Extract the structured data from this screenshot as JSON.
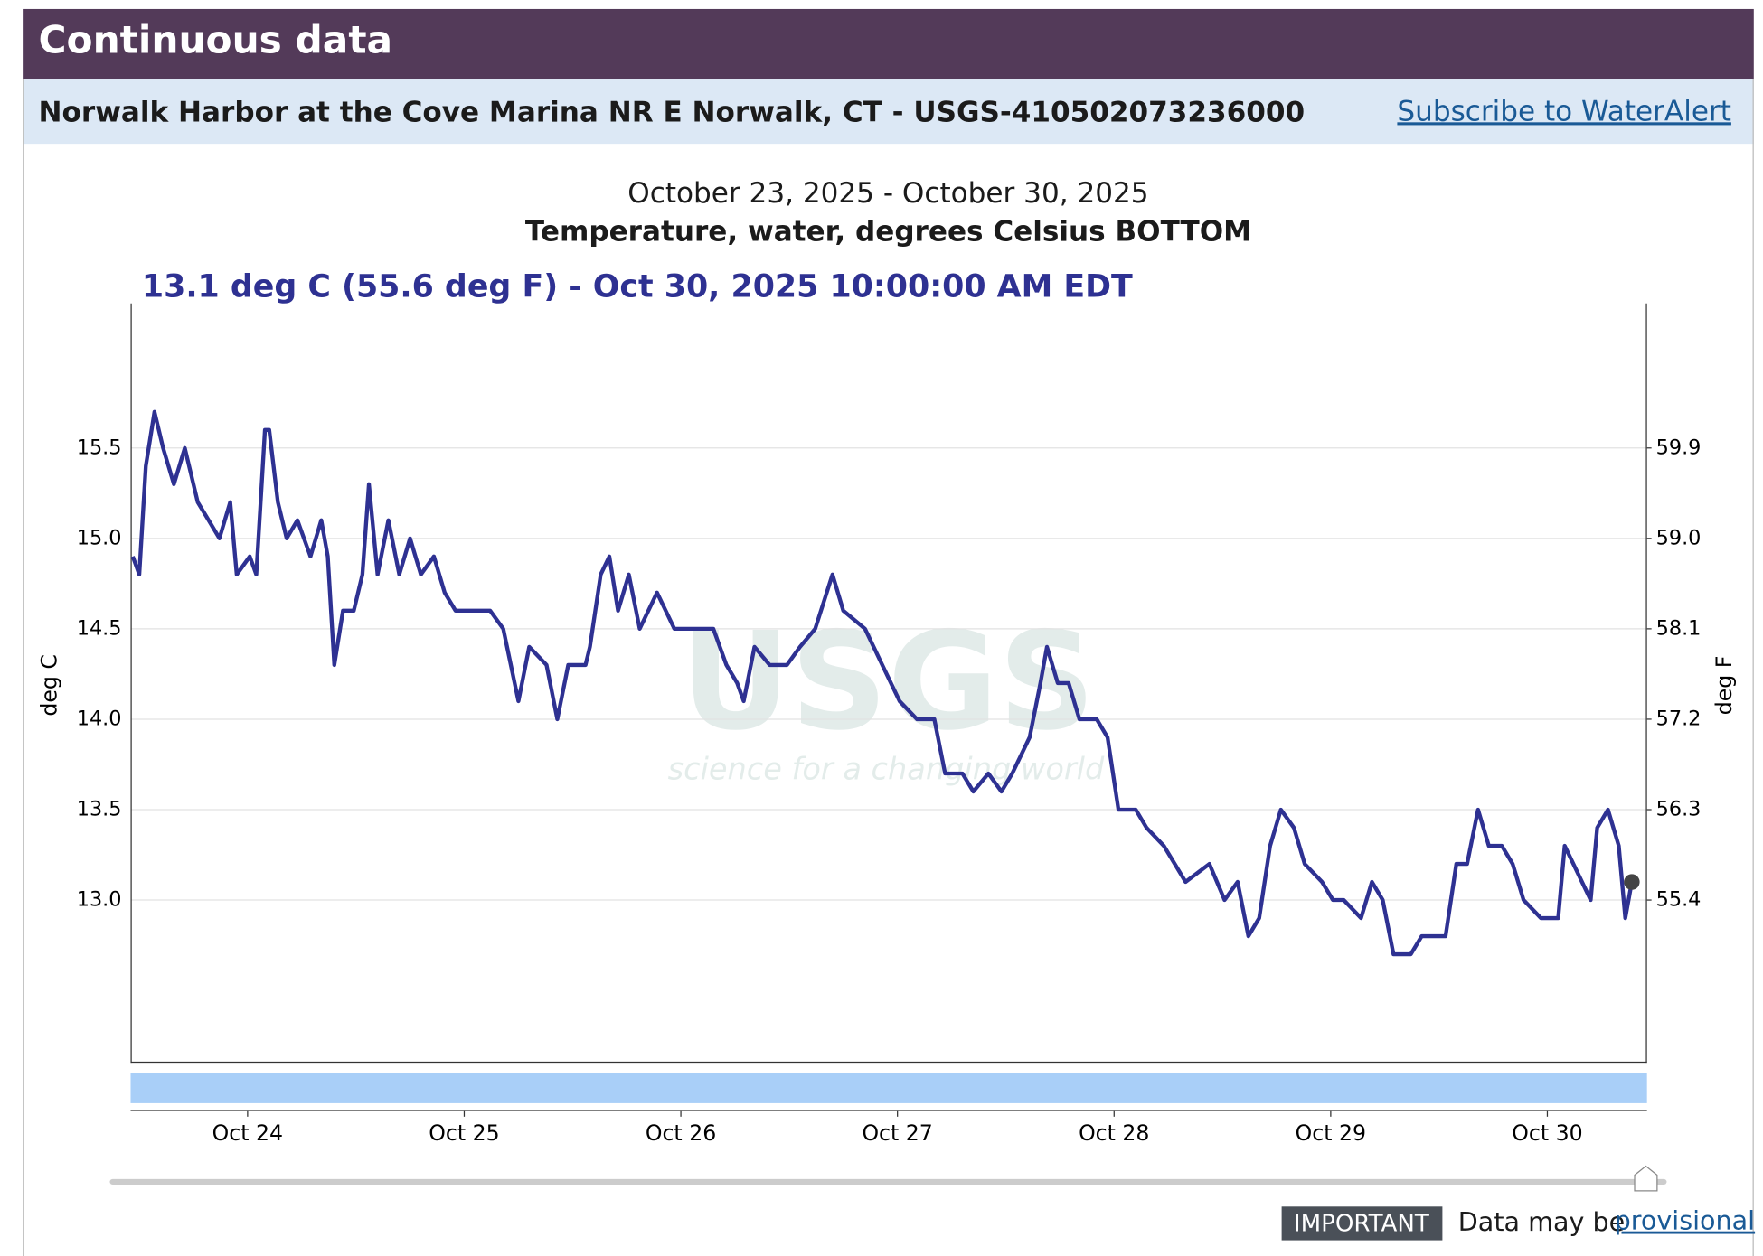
{
  "header": {
    "title": "Continuous data"
  },
  "site": {
    "name": "Norwalk Harbor at the Cove Marina NR E Norwalk, CT - USGS-410502073236000",
    "link": "Subscribe to WaterAlert"
  },
  "watermark": {
    "logo": "USGS",
    "tagline": "science for a changing world"
  },
  "chart_data": {
    "type": "line",
    "title": "October 23, 2025 - October 30, 2025",
    "subtitle": "Temperature, water, degrees Celsius BOTTOM",
    "annotation": "13.1 deg C (55.6 deg F) - Oct 30, 2025 10:00:00 AM EDT",
    "y_label": "deg C",
    "y2_label": "deg F",
    "color": "#2e3192",
    "grid": true,
    "x": [
      23.47,
      23.5,
      23.53,
      23.57,
      23.61,
      23.66,
      23.71,
      23.77,
      23.82,
      23.87,
      23.92,
      23.95,
      24.01,
      24.04,
      24.08,
      24.1,
      24.14,
      24.18,
      24.23,
      24.29,
      24.34,
      24.37,
      24.4,
      24.44,
      24.49,
      24.53,
      24.56,
      24.6,
      24.65,
      24.7,
      24.75,
      24.8,
      24.86,
      24.91,
      24.96,
      25.04,
      25.12,
      25.18,
      25.25,
      25.3,
      25.38,
      25.43,
      25.48,
      25.56,
      25.58,
      25.63,
      25.67,
      25.71,
      25.76,
      25.81,
      25.89,
      25.97,
      26.05,
      26.15,
      26.21,
      26.26,
      26.29,
      26.34,
      26.41,
      26.49,
      26.55,
      26.62,
      26.7,
      26.75,
      26.85,
      26.93,
      27.01,
      27.09,
      27.17,
      27.22,
      27.3,
      27.35,
      27.42,
      27.48,
      27.53,
      27.61,
      27.66,
      27.69,
      27.74,
      27.79,
      27.84,
      27.92,
      27.97,
      28.02,
      28.1,
      28.15,
      28.23,
      28.28,
      28.33,
      28.44,
      28.51,
      28.57,
      28.62,
      28.67,
      28.72,
      28.77,
      28.83,
      28.88,
      28.96,
      29.01,
      29.06,
      29.14,
      29.19,
      29.24,
      29.29,
      29.37,
      29.42,
      29.53,
      29.58,
      29.63,
      29.68,
      29.73,
      29.79,
      29.84,
      29.89,
      29.97,
      30.05,
      30.08,
      30.12,
      30.2,
      30.23,
      30.28,
      30.33,
      30.36,
      30.39
    ],
    "values": [
      14.9,
      14.8,
      15.4,
      15.7,
      15.5,
      15.3,
      15.5,
      15.2,
      15.1,
      15.0,
      15.2,
      14.8,
      14.9,
      14.8,
      15.6,
      15.6,
      15.2,
      15.0,
      15.1,
      14.9,
      15.1,
      14.9,
      14.3,
      14.6,
      14.6,
      14.8,
      15.3,
      14.8,
      15.1,
      14.8,
      15.0,
      14.8,
      14.9,
      14.7,
      14.6,
      14.6,
      14.6,
      14.5,
      14.1,
      14.4,
      14.3,
      14.0,
      14.3,
      14.3,
      14.4,
      14.8,
      14.9,
      14.6,
      14.8,
      14.5,
      14.7,
      14.5,
      14.5,
      14.5,
      14.3,
      14.2,
      14.1,
      14.4,
      14.3,
      14.3,
      14.4,
      14.5,
      14.8,
      14.6,
      14.5,
      14.3,
      14.1,
      14.0,
      14.0,
      13.7,
      13.7,
      13.6,
      13.7,
      13.6,
      13.7,
      13.9,
      14.2,
      14.4,
      14.2,
      14.2,
      14.0,
      14.0,
      13.9,
      13.5,
      13.5,
      13.4,
      13.3,
      13.2,
      13.1,
      13.2,
      13.0,
      13.1,
      12.8,
      12.9,
      13.3,
      13.5,
      13.4,
      13.2,
      13.1,
      13.0,
      13.0,
      12.9,
      13.1,
      13.0,
      12.7,
      12.7,
      12.8,
      12.8,
      13.2,
      13.2,
      13.5,
      13.3,
      13.3,
      13.2,
      13.0,
      12.9,
      12.9,
      13.3,
      13.2,
      13.0,
      13.4,
      13.5,
      13.3,
      12.9,
      13.1
    ],
    "xlim": [
      23.46,
      30.46
    ],
    "xticks": [
      {
        "value": 24,
        "label": "Oct 24"
      },
      {
        "value": 25,
        "label": "Oct 25"
      },
      {
        "value": 26,
        "label": "Oct 26"
      },
      {
        "value": 27,
        "label": "Oct 27"
      },
      {
        "value": 28,
        "label": "Oct 28"
      },
      {
        "value": 29,
        "label": "Oct 29"
      },
      {
        "value": 30,
        "label": "Oct 30"
      }
    ],
    "ylim": [
      12.1,
      16.3
    ],
    "yticks": [
      {
        "value": 13,
        "label": "13.0"
      },
      13.5,
      {
        "value": 14,
        "label": "14.0"
      },
      14.5,
      {
        "value": 15,
        "label": "15.0"
      },
      15.5
    ],
    "y2lim": [
      53.78,
      61.34
    ],
    "y2ticks": [
      55.4,
      56.3,
      57.2,
      58.1,
      {
        "value": 59,
        "label": "59.0"
      },
      59.9
    ]
  },
  "footer": {
    "badge": "IMPORTANT",
    "text": "Data may be",
    "link": "provisional"
  }
}
